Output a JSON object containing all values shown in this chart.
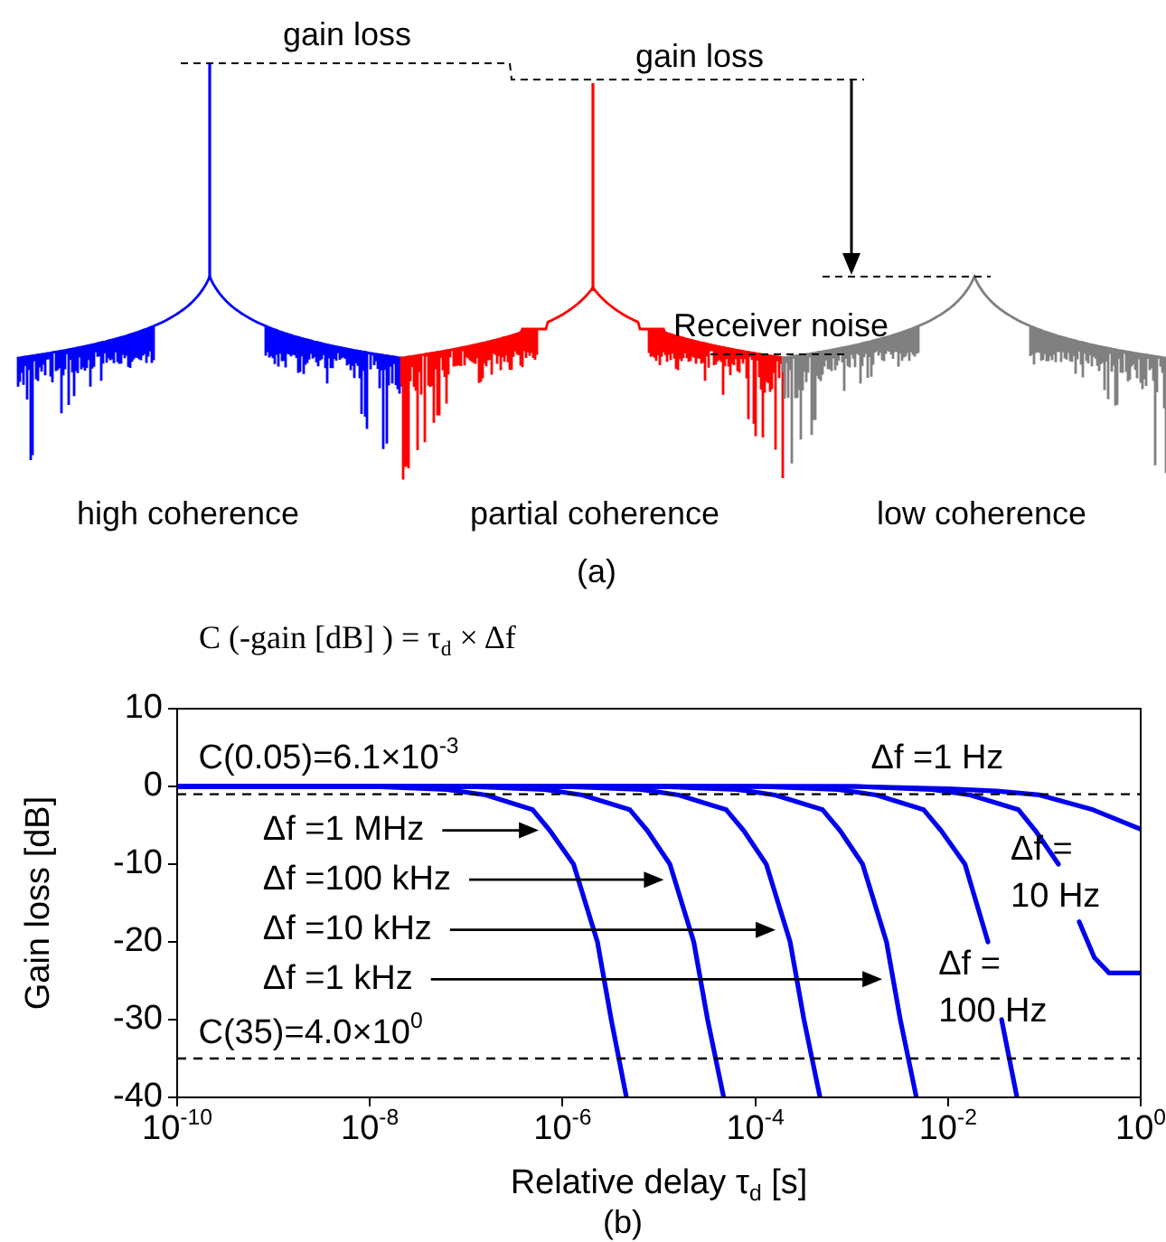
{
  "chart_data": [
    {
      "type": "other",
      "annotations": [
        "gain loss",
        "gain loss",
        "Receiver noise",
        "high coherence",
        "partial coherence",
        "low coherence",
        "(a)"
      ]
    },
    {
      "type": "line",
      "title": "C (-gain [dB] ) = τ$_{d}$ × Δf",
      "xlabel": "Relative delay τ$_{d}$ [s]",
      "ylabel": "Gain loss [dB]",
      "log": "x",
      "legend": false,
      "marker": "none",
      "line_style": "solid",
      "xlim": [
        1e-10,
        1
      ],
      "xticks": [
        {
          "value": 1e-10,
          "label": "10$^{-10}$"
        },
        {
          "value": 1e-08,
          "label": "10$^{-8}$"
        },
        {
          "value": 1e-06,
          "label": "10$^{-6}$"
        },
        {
          "value": 0.0001,
          "label": "10$^{-4}$"
        },
        {
          "value": 0.01,
          "label": "10$^{-2}$"
        },
        {
          "value": 1,
          "label": "10$^{0}$"
        }
      ],
      "ylim": [
        -40,
        10
      ],
      "yticks": [
        10,
        0,
        -10,
        -20,
        -30,
        -40
      ],
      "series": [
        {
          "color": "#0000ee",
          "x": [
            1e-10,
            1e-08,
            6.3e-08,
            1.6e-07,
            4.9e-07,
            7.4e-07,
            1.3e-06,
            2.3e-06,
            3.2e-06,
            4.6e-06
          ],
          "values": [
            0,
            0,
            -0.4,
            -1.1,
            -3,
            -5.7,
            -10,
            -20,
            -30,
            -40
          ]
        },
        {
          "color": "#0000ee",
          "x": [
            1e-10,
            1e-07,
            6.5e-07,
            1.6e-06,
            5e-06,
            7.6e-06,
            1.3e-05,
            2.3e-05,
            3.2e-05,
            4.7e-05
          ],
          "values": [
            0,
            0,
            -0.4,
            -1.1,
            -3,
            -5.7,
            -10,
            -20,
            -30,
            -40
          ]
        },
        {
          "color": "#0000ee",
          "x": [
            1e-10,
            1e-06,
            6.5e-06,
            1.6e-05,
            5e-05,
            7.6e-05,
            0.00013,
            0.00023,
            0.00032,
            0.00047
          ],
          "values": [
            0,
            0,
            -0.4,
            -1.1,
            -3,
            -5.7,
            -10,
            -20,
            -30,
            -40
          ]
        },
        {
          "color": "#0000ee",
          "x": [
            1e-10,
            1e-05,
            6.5e-05,
            0.00016,
            0.0005,
            0.00076,
            0.0013,
            0.0023,
            0.0032,
            0.0047
          ],
          "values": [
            0,
            0,
            -0.4,
            -1.1,
            -3,
            -5.7,
            -10,
            -20,
            -30,
            -40
          ]
        },
        {
          "color": "#0000ee",
          "x": [
            1e-10,
            0.00011,
            0.00072,
            0.0018,
            0.0056,
            0.0085,
            0.015,
            0.026,
            0.03,
            0.036,
            0.052
          ],
          "values": [
            0,
            0,
            -0.4,
            -1.1,
            -3,
            -5.7,
            -10,
            -20,
            null,
            -30,
            -40
          ]
        },
        {
          "color": "#0000ee",
          "x": [
            1e-10,
            0.0011,
            0.0069,
            0.017,
            0.054,
            0.081,
            0.14,
            0.18,
            0.23,
            0.33,
            0.47,
            1
          ],
          "values": [
            0,
            0,
            -0.4,
            -1.1,
            -3,
            -5.7,
            -10,
            null,
            -17.4,
            -22,
            -24,
            -24
          ]
        },
        {
          "color": "#0000ee",
          "x": [
            1e-10,
            0.001,
            0.01,
            0.032,
            0.089,
            0.32,
            1
          ],
          "values": [
            0,
            0,
            -0.3,
            -0.6,
            -1.1,
            -3,
            -5.5
          ]
        }
      ],
      "ref_lines": [
        {
          "axis": "y",
          "value": -1,
          "color": "#000000",
          "line_style": "dashed"
        },
        {
          "axis": "y",
          "value": -35,
          "color": "#000000",
          "line_style": "dashed"
        }
      ],
      "annotations": [
        "C(0.05)=6.1×10$^{-3}$",
        "C(35)=4.0×10$^{0}$",
        "Δf =1 MHz",
        "Δf =100 kHz",
        "Δf =10 kHz",
        "Δf =1 kHz",
        "Δf =1 Hz",
        "Δf =10 Hz",
        "Δf =100 Hz",
        "(b)"
      ]
    }
  ]
}
